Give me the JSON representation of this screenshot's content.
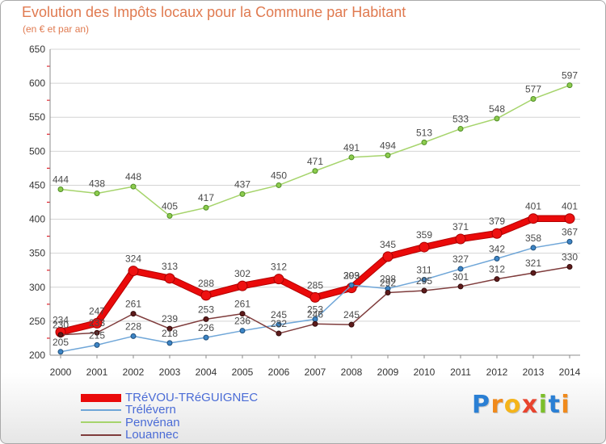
{
  "chart_data": {
    "type": "line",
    "title": "Evolution des Impôts locaux pour la Commune par Habitant",
    "subtitle": "(en € et par an)",
    "xlabel": "",
    "ylabel": "",
    "x": [
      "2000",
      "2001",
      "2002",
      "2003",
      "2004",
      "2005",
      "2006",
      "2007",
      "2008",
      "2009",
      "2010",
      "2011",
      "2012",
      "2013",
      "2014"
    ],
    "ylim": [
      200,
      650
    ],
    "yticks": [
      200,
      250,
      300,
      350,
      400,
      450,
      500,
      550,
      600,
      650
    ],
    "grid": true,
    "legend_position": "bottom-left",
    "series": [
      {
        "name": "TRéVOU-TRéGUIGNEC",
        "color": "#ea0a0a",
        "marker": "#ee1111",
        "marker_stroke": "#a80000",
        "values": [
          234,
          247,
          324,
          313,
          288,
          302,
          312,
          285,
          299,
          345,
          359,
          371,
          379,
          401,
          401
        ]
      },
      {
        "name": "Trélévern",
        "color": "#6fa6d8",
        "marker": "#3d85c6",
        "marker_stroke": "#1f4e79",
        "values": [
          205,
          215,
          228,
          218,
          226,
          236,
          245,
          253,
          303,
          298,
          311,
          327,
          342,
          358,
          367
        ]
      },
      {
        "name": "Penvénan",
        "color": "#a6d46c",
        "marker": "#8dcc4e",
        "marker_stroke": "#4f8d25",
        "values": [
          444,
          438,
          448,
          405,
          417,
          437,
          450,
          471,
          491,
          494,
          513,
          533,
          548,
          577,
          597
        ]
      },
      {
        "name": "Louannec",
        "color": "#7f3c3c",
        "marker": "#5e1b1b",
        "marker_stroke": "#330b0b",
        "values": [
          230,
          233,
          261,
          239,
          253,
          261,
          232,
          246,
          245,
          292,
          295,
          301,
          312,
          321,
          330
        ]
      }
    ]
  },
  "colors": {
    "title": "#e07a50",
    "legend_text": "#4b6cd6",
    "gridline": "#d4d4d4",
    "axis": "#8c8c8c",
    "minor_tick": "#e0202a"
  },
  "logo": {
    "text": "Proxiti",
    "colors": [
      "#2a7fd4",
      "#f08a1c",
      "#f4b41a",
      "#e8432e",
      "#7cbf2b",
      "#2a7fd4",
      "#f08a1c"
    ]
  }
}
